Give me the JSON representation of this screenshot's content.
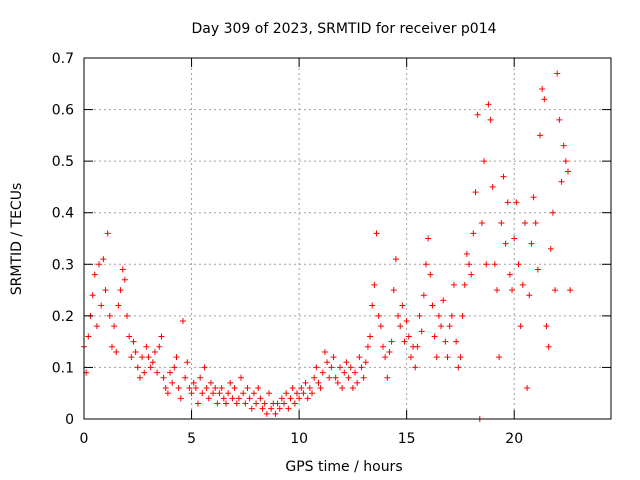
{
  "chart_data": {
    "type": "scatter",
    "title": "Day 309 of 2023, SRMTID for receiver p014",
    "xlabel": "GPS time / hours",
    "ylabel": "SRMTID / TECUs",
    "xlim": [
      0,
      24.5
    ],
    "ylim": [
      0,
      0.7
    ],
    "xticks": [
      0,
      5,
      10,
      15,
      20
    ],
    "xtick_labels": [
      "0",
      "5",
      "10",
      "15",
      "20"
    ],
    "yticks": [
      0,
      0.1,
      0.2,
      0.3,
      0.4,
      0.5,
      0.6,
      0.7
    ],
    "ytick_labels": [
      "0",
      "0.1",
      "0.2",
      "0.3",
      "0.4",
      "0.5",
      "0.6",
      "0.7"
    ],
    "grid": true,
    "marker": "+",
    "series": [
      {
        "name": "SRMTID",
        "color": "#ff0000",
        "points": [
          [
            0.0,
            0.14
          ],
          [
            0.1,
            0.09
          ],
          [
            0.2,
            0.16
          ],
          [
            0.3,
            0.2
          ],
          [
            0.4,
            0.24
          ],
          [
            0.5,
            0.28
          ],
          [
            0.6,
            0.18
          ],
          [
            0.7,
            0.3
          ],
          [
            0.8,
            0.22
          ],
          [
            0.9,
            0.31
          ],
          [
            1.0,
            0.25
          ],
          [
            1.1,
            0.36
          ],
          [
            1.2,
            0.2
          ],
          [
            1.3,
            0.14
          ],
          [
            1.4,
            0.18
          ],
          [
            1.5,
            0.13
          ],
          [
            1.6,
            0.22
          ],
          [
            1.7,
            0.25
          ],
          [
            1.8,
            0.29
          ],
          [
            1.9,
            0.27
          ],
          [
            2.0,
            0.2
          ],
          [
            2.1,
            0.16
          ],
          [
            2.2,
            0.12
          ],
          [
            2.3,
            0.15
          ],
          [
            2.4,
            0.13
          ],
          [
            2.5,
            0.1
          ],
          [
            2.6,
            0.08
          ],
          [
            2.7,
            0.12
          ],
          [
            2.8,
            0.09
          ],
          [
            2.9,
            0.14
          ],
          [
            3.0,
            0.12
          ],
          [
            3.1,
            0.1
          ],
          [
            3.2,
            0.11
          ],
          [
            3.3,
            0.13
          ],
          [
            3.4,
            0.09
          ],
          [
            3.5,
            0.14
          ],
          [
            3.6,
            0.16
          ],
          [
            3.7,
            0.08
          ],
          [
            3.8,
            0.06
          ],
          [
            3.9,
            0.05
          ],
          [
            4.0,
            0.09
          ],
          [
            4.1,
            0.07
          ],
          [
            4.2,
            0.1
          ],
          [
            4.3,
            0.12
          ],
          [
            4.4,
            0.06
          ],
          [
            4.5,
            0.04
          ],
          [
            4.6,
            0.19
          ],
          [
            4.7,
            0.08
          ],
          [
            4.8,
            0.11
          ],
          [
            4.9,
            0.06
          ],
          [
            5.0,
            0.05
          ],
          [
            5.1,
            0.07
          ],
          [
            5.2,
            0.06
          ],
          [
            5.3,
            0.03
          ],
          [
            5.4,
            0.08
          ],
          [
            5.5,
            0.05
          ],
          [
            5.6,
            0.1
          ],
          [
            5.7,
            0.06
          ],
          [
            5.8,
            0.04
          ],
          [
            5.9,
            0.07
          ],
          [
            6.0,
            0.05
          ],
          [
            6.1,
            0.06
          ],
          [
            6.2,
            0.03
          ],
          [
            6.3,
            0.05
          ],
          [
            6.4,
            0.06
          ],
          [
            6.5,
            0.04
          ],
          [
            6.6,
            0.03
          ],
          [
            6.7,
            0.05
          ],
          [
            6.8,
            0.07
          ],
          [
            6.9,
            0.04
          ],
          [
            7.0,
            0.06
          ],
          [
            7.1,
            0.03
          ],
          [
            7.2,
            0.04
          ],
          [
            7.3,
            0.08
          ],
          [
            7.4,
            0.05
          ],
          [
            7.5,
            0.03
          ],
          [
            7.6,
            0.06
          ],
          [
            7.7,
            0.04
          ],
          [
            7.8,
            0.02
          ],
          [
            7.9,
            0.05
          ],
          [
            8.0,
            0.03
          ],
          [
            8.1,
            0.06
          ],
          [
            8.2,
            0.04
          ],
          [
            8.3,
            0.02
          ],
          [
            8.4,
            0.03
          ],
          [
            8.5,
            0.01
          ],
          [
            8.6,
            0.05
          ],
          [
            8.7,
            0.02
          ],
          [
            8.8,
            0.03
          ],
          [
            8.9,
            0.01
          ],
          [
            9.0,
            0.03
          ],
          [
            9.1,
            0.02
          ],
          [
            9.2,
            0.04
          ],
          [
            9.3,
            0.03
          ],
          [
            9.4,
            0.05
          ],
          [
            9.5,
            0.02
          ],
          [
            9.6,
            0.04
          ],
          [
            9.7,
            0.06
          ],
          [
            9.8,
            0.03
          ],
          [
            9.9,
            0.05
          ],
          [
            10.0,
            0.04
          ],
          [
            10.1,
            0.06
          ],
          [
            10.2,
            0.05
          ],
          [
            10.3,
            0.07
          ],
          [
            10.4,
            0.04
          ],
          [
            10.5,
            0.06
          ],
          [
            10.6,
            0.05
          ],
          [
            10.7,
            0.08
          ],
          [
            10.8,
            0.1
          ],
          [
            10.9,
            0.07
          ],
          [
            11.0,
            0.06
          ],
          [
            11.1,
            0.09
          ],
          [
            11.2,
            0.13
          ],
          [
            11.3,
            0.11
          ],
          [
            11.4,
            0.08
          ],
          [
            11.5,
            0.1
          ],
          [
            11.6,
            0.12
          ],
          [
            11.7,
            0.08
          ],
          [
            11.8,
            0.07
          ],
          [
            11.9,
            0.1
          ],
          [
            12.0,
            0.06
          ],
          [
            12.1,
            0.09
          ],
          [
            12.2,
            0.11
          ],
          [
            12.3,
            0.08
          ],
          [
            12.4,
            0.1
          ],
          [
            12.5,
            0.06
          ],
          [
            12.6,
            0.09
          ],
          [
            12.7,
            0.07
          ],
          [
            12.8,
            0.12
          ],
          [
            12.9,
            0.1
          ],
          [
            13.0,
            0.08
          ],
          [
            13.1,
            0.11
          ],
          [
            13.2,
            0.14
          ],
          [
            13.3,
            0.16
          ],
          [
            13.4,
            0.22
          ],
          [
            13.5,
            0.26
          ],
          [
            13.6,
            0.36
          ],
          [
            13.7,
            0.2
          ],
          [
            13.8,
            0.18
          ],
          [
            13.9,
            0.14
          ],
          [
            14.0,
            0.12
          ],
          [
            14.1,
            0.08
          ],
          [
            14.2,
            0.13
          ],
          [
            14.3,
            0.15
          ],
          [
            14.4,
            0.25
          ],
          [
            14.5,
            0.31
          ],
          [
            14.6,
            0.2
          ],
          [
            14.7,
            0.18
          ],
          [
            14.8,
            0.22
          ],
          [
            14.9,
            0.15
          ],
          [
            15.0,
            0.19
          ],
          [
            15.1,
            0.16
          ],
          [
            15.2,
            0.12
          ],
          [
            15.3,
            0.14
          ],
          [
            15.4,
            0.1
          ],
          [
            15.5,
            0.14
          ],
          [
            15.6,
            0.2
          ],
          [
            15.7,
            0.17
          ],
          [
            15.8,
            0.24
          ],
          [
            15.9,
            0.3
          ],
          [
            16.0,
            0.35
          ],
          [
            16.1,
            0.28
          ],
          [
            16.2,
            0.22
          ],
          [
            16.3,
            0.16
          ],
          [
            16.4,
            0.12
          ],
          [
            16.5,
            0.2
          ],
          [
            16.6,
            0.18
          ],
          [
            16.7,
            0.23
          ],
          [
            16.8,
            0.15
          ],
          [
            16.9,
            0.12
          ],
          [
            17.0,
            0.18
          ],
          [
            17.1,
            0.2
          ],
          [
            17.2,
            0.26
          ],
          [
            17.3,
            0.15
          ],
          [
            17.4,
            0.1
          ],
          [
            17.5,
            0.12
          ],
          [
            17.6,
            0.2
          ],
          [
            17.7,
            0.26
          ],
          [
            17.8,
            0.32
          ],
          [
            17.9,
            0.3
          ],
          [
            18.0,
            0.28
          ],
          [
            18.1,
            0.36
          ],
          [
            18.2,
            0.44
          ],
          [
            18.3,
            0.59
          ],
          [
            18.4,
            0.0
          ],
          [
            18.5,
            0.38
          ],
          [
            18.6,
            0.5
          ],
          [
            18.7,
            0.3
          ],
          [
            18.8,
            0.61
          ],
          [
            18.9,
            0.58
          ],
          [
            19.0,
            0.45
          ],
          [
            19.1,
            0.3
          ],
          [
            19.2,
            0.25
          ],
          [
            19.3,
            0.12
          ],
          [
            19.4,
            0.38
          ],
          [
            19.5,
            0.47
          ],
          [
            19.6,
            0.34
          ],
          [
            19.7,
            0.42
          ],
          [
            19.8,
            0.28
          ],
          [
            19.9,
            0.25
          ],
          [
            20.0,
            0.35
          ],
          [
            20.1,
            0.42
          ],
          [
            20.2,
            0.3
          ],
          [
            20.3,
            0.18
          ],
          [
            20.4,
            0.26
          ],
          [
            20.5,
            0.38
          ],
          [
            20.6,
            0.06
          ],
          [
            20.7,
            0.24
          ],
          [
            20.8,
            0.34
          ],
          [
            20.9,
            0.43
          ],
          [
            21.0,
            0.38
          ],
          [
            21.1,
            0.29
          ],
          [
            21.2,
            0.55
          ],
          [
            21.3,
            0.64
          ],
          [
            21.4,
            0.62
          ],
          [
            21.5,
            0.18
          ],
          [
            21.6,
            0.14
          ],
          [
            21.7,
            0.33
          ],
          [
            21.8,
            0.4
          ],
          [
            21.9,
            0.25
          ],
          [
            22.0,
            0.67
          ],
          [
            22.1,
            0.58
          ],
          [
            22.2,
            0.46
          ],
          [
            22.3,
            0.53
          ],
          [
            22.4,
            0.5
          ],
          [
            22.5,
            0.48
          ],
          [
            22.6,
            0.25
          ]
        ]
      }
    ]
  }
}
